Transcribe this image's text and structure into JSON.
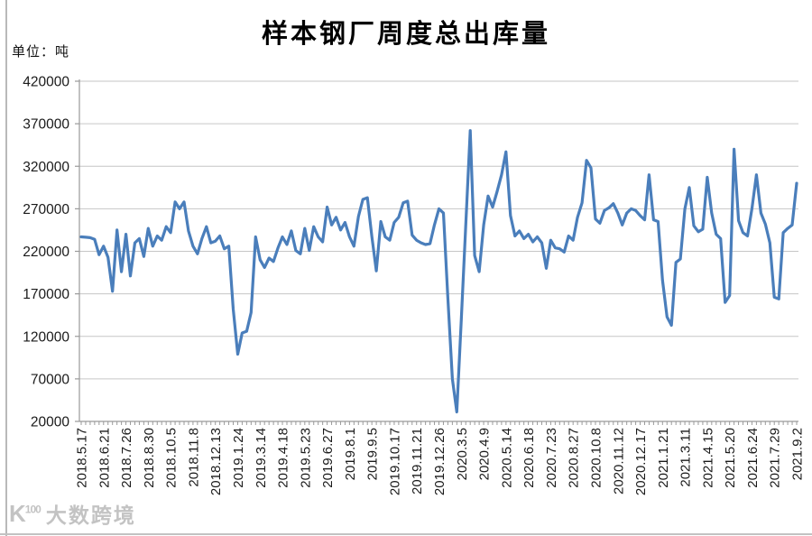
{
  "page": {
    "title": "样本钢厂周度总出库量",
    "unit_label": "单位：吨",
    "watermark_logo": "K¹⁰⁰",
    "watermark_text": "大数跨境"
  },
  "colors": {
    "line": "#4a7ebb",
    "grid": "#c6c6c6",
    "axis": "#9a9a9a",
    "tick_text": "#1a1a1a"
  },
  "chart_data": {
    "type": "line",
    "title": "样本钢厂周度总出库量",
    "ylabel": "单位：吨",
    "ylim": [
      20000,
      420000
    ],
    "ytick_step": 50000,
    "y_ticks": [
      420000,
      370000,
      320000,
      270000,
      220000,
      170000,
      120000,
      70000,
      20000
    ],
    "grid": "horizontal-only",
    "legend": "none",
    "label_every": 5,
    "x_labels": [
      "2018.5.17",
      "2018.6.21",
      "2018.7.26",
      "2018.8.30",
      "2018.10.5",
      "2018.11.8",
      "2018.12.13",
      "2019.1.24",
      "2019.3.14",
      "2019.4.18",
      "2019.5.23",
      "2019.6.27",
      "2019.8.1",
      "2019.9.5",
      "2019.10.17",
      "2019.11.21",
      "2019.12.26",
      "2020.3.5",
      "2020.4.9",
      "2020.5.14",
      "2020.6.18",
      "2020.7.23",
      "2020.8.27",
      "2020.10.8",
      "2020.11.12",
      "2020.12.17",
      "2021.1.21",
      "2021.3.11",
      "2021.4.15",
      "2021.5.20",
      "2021.6.24",
      "2021.7.29",
      "2021.9.2"
    ],
    "values": [
      237000,
      236500,
      236000,
      234000,
      216000,
      226000,
      213000,
      173000,
      245000,
      196000,
      240000,
      191000,
      230000,
      235000,
      214000,
      247000,
      226000,
      238000,
      233000,
      249000,
      242000,
      278000,
      270000,
      278000,
      244000,
      226000,
      217000,
      235000,
      249000,
      230000,
      232000,
      238000,
      223000,
      226000,
      152000,
      99000,
      124000,
      126000,
      148000,
      237000,
      210000,
      201000,
      212000,
      208000,
      224000,
      237000,
      228000,
      244000,
      221000,
      217000,
      247000,
      221000,
      249000,
      237000,
      231000,
      272000,
      251000,
      260000,
      245000,
      254000,
      237000,
      226000,
      261000,
      281000,
      283000,
      237000,
      197000,
      255000,
      237000,
      233000,
      254000,
      260000,
      277000,
      279000,
      239000,
      233000,
      230000,
      228000,
      229000,
      251000,
      270000,
      265000,
      165000,
      70000,
      31000,
      140000,
      250000,
      362000,
      215000,
      196000,
      251000,
      285000,
      272000,
      290000,
      310000,
      337000,
      262000,
      238000,
      244000,
      235000,
      240000,
      231000,
      237000,
      230000,
      200000,
      233000,
      224000,
      223000,
      219000,
      238000,
      233000,
      260000,
      277000,
      327000,
      318000,
      258000,
      253000,
      268000,
      271000,
      276000,
      265000,
      251000,
      265000,
      270000,
      268000,
      262000,
      257000,
      310000,
      257000,
      255000,
      186000,
      143000,
      133000,
      207000,
      211000,
      270000,
      295000,
      250000,
      243000,
      246000,
      307000,
      265000,
      240000,
      235000,
      160000,
      168000,
      340000,
      256000,
      242000,
      238000,
      270000,
      310000,
      265000,
      252000,
      230000,
      166000,
      164000,
      242000,
      247000,
      251000,
      300000
    ]
  }
}
